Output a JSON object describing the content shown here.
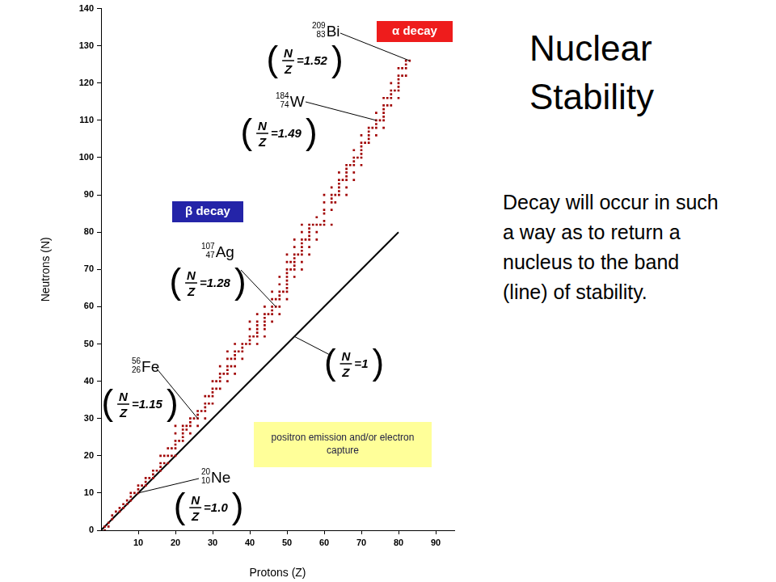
{
  "chart_data": {
    "type": "scatter",
    "xlabel": "Protons (Z)",
    "ylabel": "Neutrons (N)",
    "xlim": [
      0,
      95
    ],
    "xticks": [
      10,
      20,
      30,
      40,
      50,
      60,
      70,
      80,
      90
    ],
    "ylim": [
      0,
      140
    ],
    "yticks": [
      0,
      10,
      20,
      30,
      40,
      50,
      60,
      70,
      80,
      90,
      100,
      110,
      120,
      130,
      140
    ],
    "grid": false,
    "legend": "none",
    "series": [
      {
        "type": "scatter",
        "color": "#a00000",
        "marker": "square",
        "x": [
          1,
          1,
          2,
          2,
          3,
          3,
          4,
          5,
          5,
          6,
          6,
          7,
          7,
          8,
          8,
          8,
          9,
          10,
          10,
          10,
          11,
          12,
          12,
          12,
          13,
          14,
          14,
          14,
          15,
          16,
          16,
          16,
          16,
          17,
          17,
          18,
          18,
          18,
          19,
          19,
          20,
          20,
          20,
          20,
          20,
          20,
          21,
          22,
          22,
          22,
          22,
          22,
          23,
          23,
          24,
          24,
          24,
          24,
          25,
          26,
          26,
          26,
          26,
          27,
          28,
          28,
          28,
          28,
          28,
          29,
          29,
          30,
          30,
          30,
          30,
          30,
          31,
          31,
          32,
          32,
          32,
          32,
          32,
          33,
          34,
          34,
          34,
          34,
          34,
          34,
          35,
          35,
          36,
          36,
          36,
          36,
          36,
          36,
          37,
          38,
          38,
          38,
          38,
          39,
          40,
          40,
          40,
          40,
          40,
          41,
          42,
          42,
          42,
          42,
          42,
          42,
          42,
          44,
          44,
          44,
          44,
          44,
          44,
          44,
          45,
          46,
          46,
          46,
          46,
          46,
          46,
          47,
          47,
          48,
          48,
          48,
          48,
          48,
          48,
          48,
          49,
          50,
          50,
          50,
          50,
          50,
          50,
          50,
          50,
          50,
          50,
          51,
          51,
          52,
          52,
          52,
          52,
          52,
          52,
          52,
          52,
          53,
          54,
          54,
          54,
          54,
          54,
          54,
          54,
          54,
          54,
          55,
          56,
          56,
          56,
          56,
          56,
          56,
          56,
          57,
          58,
          58,
          58,
          58,
          59,
          60,
          60,
          60,
          60,
          60,
          60,
          62,
          62,
          62,
          62,
          62,
          62,
          63,
          63,
          64,
          64,
          64,
          64,
          64,
          64,
          65,
          66,
          66,
          66,
          66,
          66,
          66,
          66,
          67,
          68,
          68,
          68,
          68,
          68,
          68,
          69,
          70,
          70,
          70,
          70,
          70,
          70,
          70,
          71,
          72,
          72,
          72,
          72,
          72,
          73,
          74,
          74,
          74,
          74,
          74,
          75,
          76,
          76,
          76,
          76,
          76,
          76,
          76,
          77,
          77,
          78,
          78,
          78,
          78,
          78,
          79,
          80,
          80,
          80,
          80,
          80,
          80,
          80,
          81,
          81,
          82,
          82,
          82,
          82,
          83
        ],
        "values": [
          0,
          1,
          1,
          2,
          3,
          4,
          5,
          5,
          6,
          6,
          7,
          7,
          8,
          8,
          9,
          10,
          10,
          10,
          11,
          12,
          12,
          12,
          13,
          14,
          14,
          14,
          15,
          16,
          16,
          16,
          17,
          18,
          20,
          18,
          20,
          18,
          20,
          22,
          20,
          22,
          20,
          22,
          23,
          24,
          26,
          28,
          24,
          24,
          25,
          26,
          27,
          28,
          27,
          28,
          26,
          28,
          29,
          30,
          30,
          28,
          30,
          31,
          32,
          32,
          30,
          32,
          33,
          34,
          36,
          34,
          36,
          34,
          36,
          37,
          38,
          40,
          38,
          40,
          38,
          40,
          41,
          42,
          44,
          42,
          40,
          42,
          43,
          44,
          46,
          48,
          44,
          46,
          42,
          44,
          46,
          47,
          48,
          50,
          48,
          46,
          48,
          49,
          50,
          50,
          50,
          51,
          52,
          54,
          56,
          52,
          50,
          52,
          53,
          54,
          55,
          56,
          58,
          52,
          54,
          55,
          56,
          57,
          58,
          60,
          58,
          56,
          58,
          59,
          60,
          62,
          64,
          60,
          62,
          58,
          60,
          62,
          63,
          64,
          66,
          68,
          64,
          62,
          64,
          65,
          66,
          67,
          68,
          69,
          70,
          72,
          74,
          70,
          72,
          68,
          70,
          71,
          72,
          73,
          74,
          76,
          78,
          74,
          70,
          72,
          74,
          75,
          76,
          77,
          78,
          80,
          82,
          78,
          74,
          76,
          78,
          79,
          80,
          81,
          82,
          82,
          78,
          80,
          82,
          84,
          82,
          82,
          83,
          85,
          86,
          88,
          90,
          82,
          86,
          88,
          89,
          90,
          92,
          88,
          90,
          90,
          91,
          92,
          93,
          94,
          96,
          94,
          90,
          92,
          94,
          95,
          96,
          97,
          98,
          98,
          94,
          96,
          98,
          99,
          100,
          102,
          100,
          98,
          100,
          101,
          102,
          103,
          104,
          106,
          104,
          104,
          105,
          106,
          107,
          108,
          108,
          106,
          108,
          109,
          110,
          112,
          110,
          108,
          110,
          111,
          112,
          113,
          114,
          116,
          114,
          116,
          114,
          116,
          117,
          118,
          120,
          118,
          116,
          118,
          119,
          120,
          121,
          122,
          124,
          122,
          124,
          122,
          124,
          125,
          126,
          126
        ]
      },
      {
        "type": "line",
        "color": "#000000",
        "marker": "none",
        "line_style": "solid",
        "x": [
          0,
          80
        ],
        "values": [
          0,
          80
        ]
      }
    ],
    "ratio_symbols": {
      "numerator": "N",
      "denominator": "Z",
      "relation": "="
    },
    "nuclides": [
      {
        "mass": 209,
        "atomic_number": 83,
        "symbol": "Bi",
        "x": 83,
        "y": 126,
        "ratio": 1.52
      },
      {
        "mass": 184,
        "atomic_number": 74,
        "symbol": "W",
        "x": 74,
        "y": 110,
        "ratio": 1.49
      },
      {
        "mass": 107,
        "atomic_number": 47,
        "symbol": "Ag",
        "x": 47,
        "y": 60,
        "ratio": 1.28
      },
      {
        "mass": 56,
        "atomic_number": 26,
        "symbol": "Fe",
        "x": 26,
        "y": 30,
        "ratio": 1.15
      },
      {
        "mass": 20,
        "atomic_number": 10,
        "symbol": "Ne",
        "x": 10,
        "y": 10,
        "ratio": 1,
        "ratio_label": "1.0"
      }
    ],
    "line_note": {
      "ratio": 1
    },
    "regions": [
      {
        "text": "α decay",
        "color": "#ee1c1c"
      },
      {
        "text": "β decay",
        "color": "#2424a8"
      },
      {
        "text": "positron emission and/or electron capture",
        "color": "#ffff99"
      }
    ]
  },
  "slide": {
    "title": "Nuclear Stability",
    "text": "Decay will occur in such a way as to return a nucleus to the band (line) of stability."
  }
}
